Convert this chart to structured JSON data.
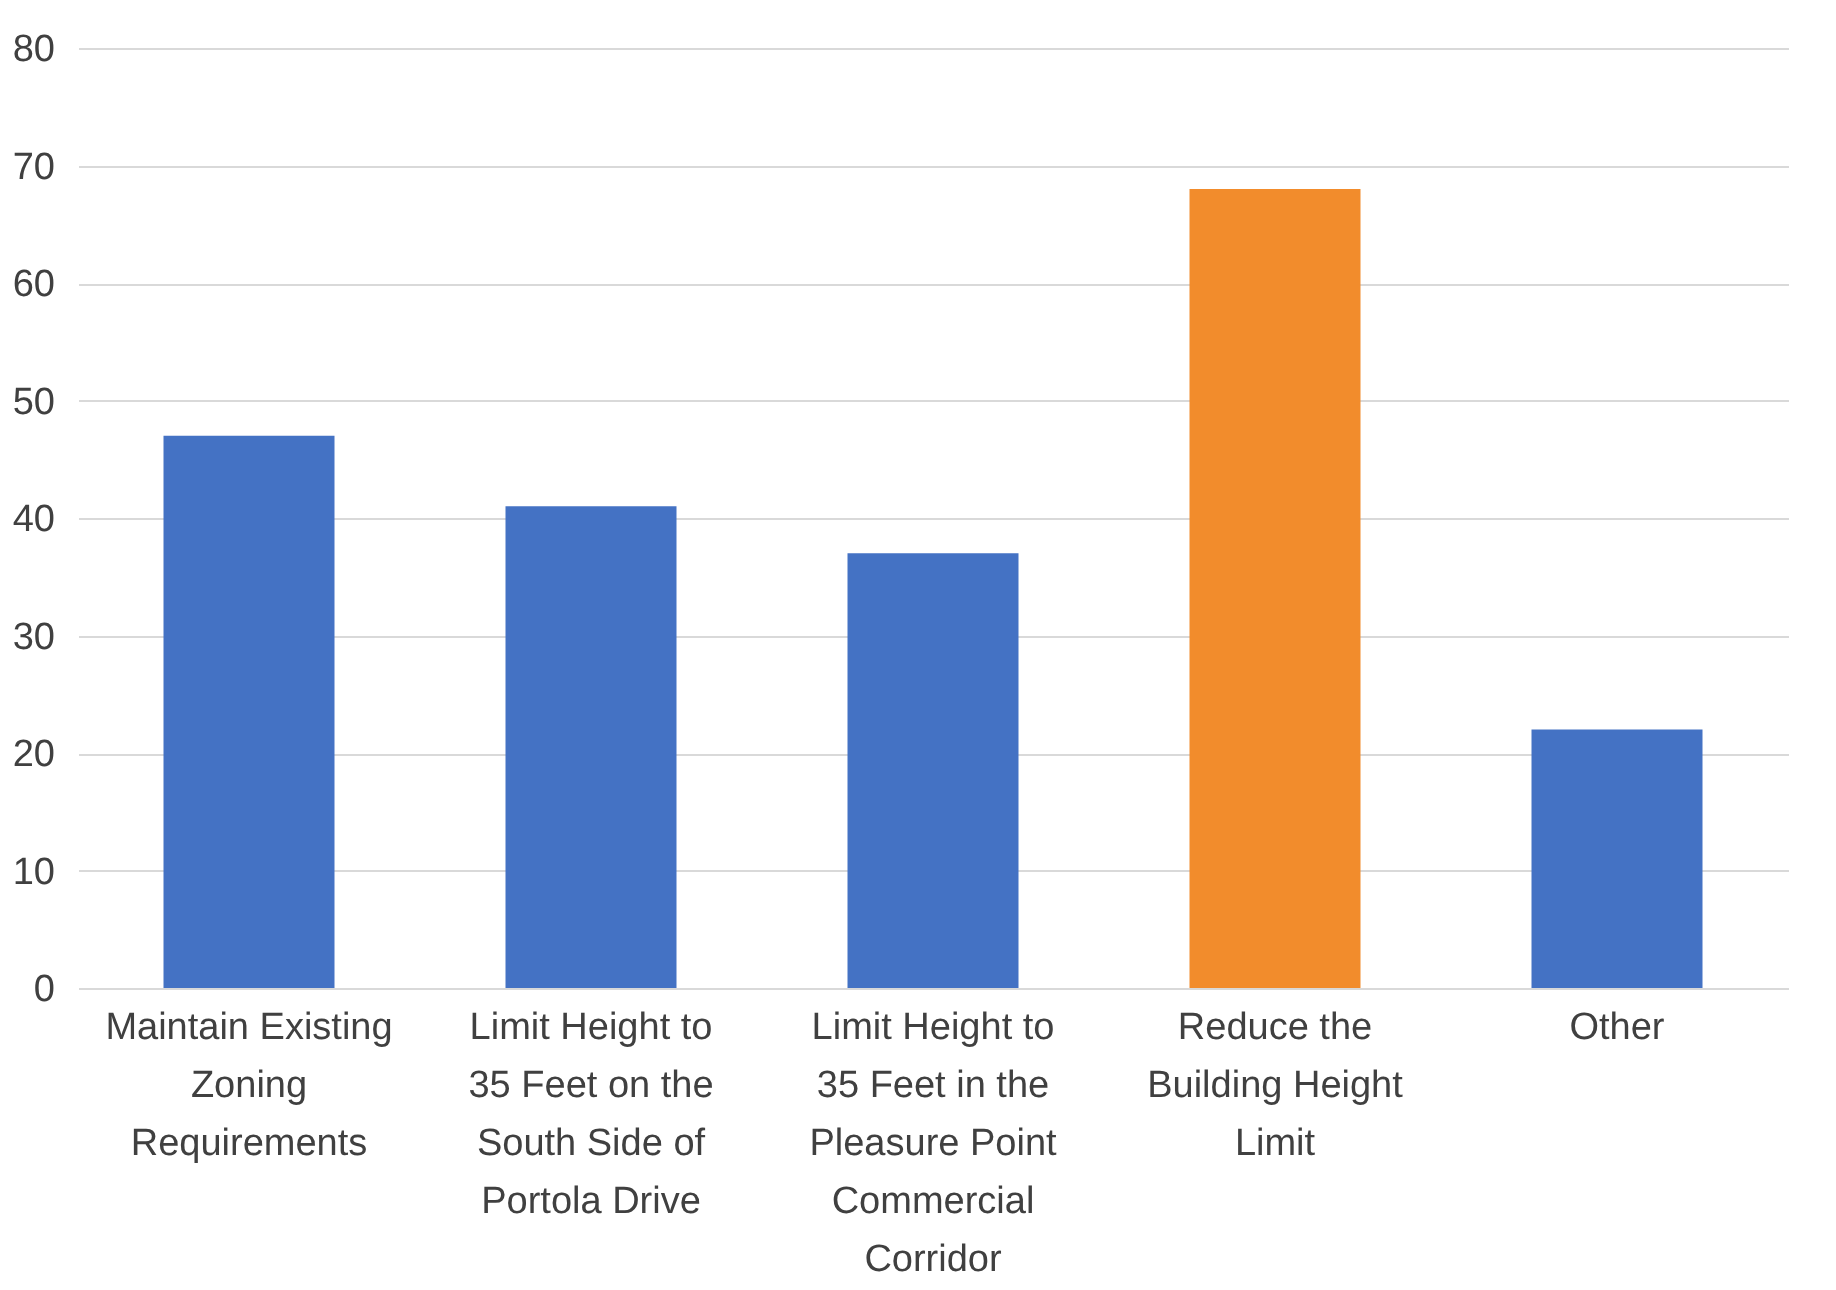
{
  "chart_data": {
    "type": "bar",
    "categories": [
      "Maintain Existing Zoning Requirements",
      "Limit Height to 35 Feet on the South Side of Portola Drive",
      "Limit Height to 35 Feet in the Pleasure Point Commercial Corridor",
      "Reduce the Building Height Limit",
      "Other"
    ],
    "values": [
      47,
      41,
      37,
      68,
      22
    ],
    "colors": [
      "#4472c4",
      "#4472c4",
      "#4472c4",
      "#f28c2c",
      "#4472c4"
    ],
    "ylim": [
      0,
      80
    ],
    "yticks": [
      0,
      10,
      20,
      30,
      40,
      50,
      60,
      70,
      80
    ],
    "grid": "y",
    "legend": false
  }
}
